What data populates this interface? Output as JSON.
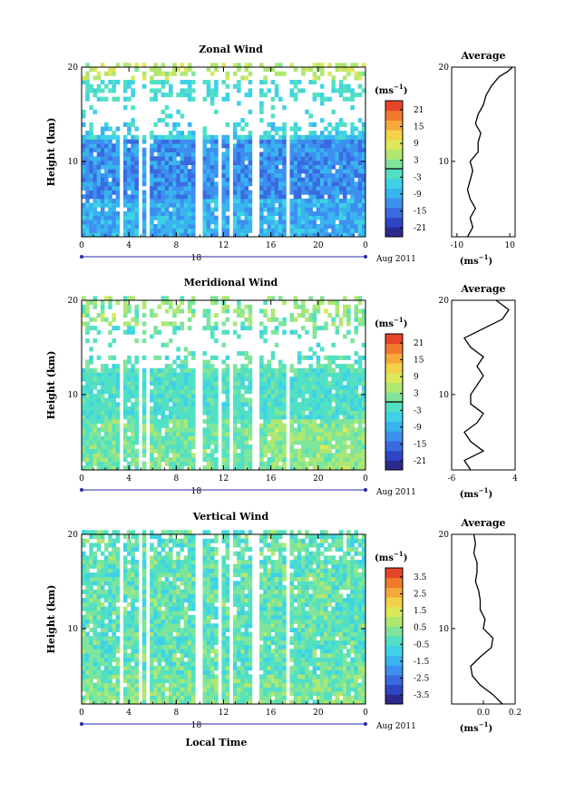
{
  "figure": {
    "xlabel": "Local Time",
    "date_label": "Aug 2011",
    "day_label": "18",
    "unit_label": "(ms",
    "unit_exp": "−1",
    "avg_title": "Average"
  },
  "palette": [
    "#2b2a8c",
    "#2e45c6",
    "#3a6ae0",
    "#3d8ff0",
    "#39b4ef",
    "#3fd2e6",
    "#52e0c4",
    "#7ee59a",
    "#aee872",
    "#dce85a",
    "#f3d24a",
    "#f7a83a",
    "#f07a2c",
    "#e6452a"
  ],
  "chart_data": [
    {
      "type": "heatmap",
      "title": "Zonal Wind",
      "ylabel": "Height (km)",
      "xlim": [
        0,
        24
      ],
      "ylim": [
        2,
        20
      ],
      "xticks": [
        "0",
        "4",
        "8",
        "12",
        "16",
        "20",
        "0"
      ],
      "yticks": [
        "10",
        "20"
      ],
      "colorbar": {
        "min": -24,
        "max": 24,
        "ticks": [
          "21",
          "15",
          "9",
          "3",
          "-3",
          "-9",
          "-15",
          "-21"
        ],
        "zero_line": 0
      },
      "data_gaps_hours": [
        [
          3.2,
          3.6
        ],
        [
          4.8,
          5.1
        ],
        [
          5.6,
          5.9
        ],
        [
          9.6,
          10.2
        ],
        [
          11.6,
          11.9
        ],
        [
          12.6,
          12.9
        ],
        [
          14.3,
          15.2
        ],
        [
          17.4,
          17.6
        ]
      ],
      "profile": {
        "title": "Average",
        "xlim": [
          -12,
          12
        ],
        "xticks": [
          "-10",
          "10"
        ],
        "xlabel": "(ms",
        "heights": [
          2,
          3,
          4,
          5,
          6,
          7,
          8,
          9,
          10,
          11,
          12,
          13,
          14,
          15,
          16,
          17,
          18,
          19,
          19.5,
          20
        ],
        "values": [
          -6,
          -4,
          -5,
          -3,
          -5,
          -6,
          -5,
          -4,
          -5,
          -2,
          -2,
          -1,
          -3,
          -2,
          0,
          1,
          3,
          6,
          9,
          11
        ]
      }
    },
    {
      "type": "heatmap",
      "title": "Meridional Wind",
      "ylabel": "Height (km)",
      "xlim": [
        0,
        24
      ],
      "ylim": [
        2,
        20
      ],
      "xticks": [
        "0",
        "4",
        "8",
        "12",
        "16",
        "20",
        "0"
      ],
      "yticks": [
        "10",
        "20"
      ],
      "colorbar": {
        "min": -24,
        "max": 24,
        "ticks": [
          "21",
          "15",
          "9",
          "3",
          "-3",
          "-9",
          "-15",
          "-21"
        ],
        "zero_line": 0
      },
      "data_gaps_hours": [
        [
          3.2,
          3.6
        ],
        [
          4.8,
          5.1
        ],
        [
          5.6,
          5.9
        ],
        [
          9.6,
          10.2
        ],
        [
          11.6,
          11.9
        ],
        [
          12.6,
          12.9
        ],
        [
          14.3,
          15.2
        ],
        [
          17.4,
          17.6
        ]
      ],
      "profile": {
        "title": "Average",
        "xlim": [
          -6,
          4
        ],
        "xticks": [
          "-6",
          "4"
        ],
        "xlabel": "(ms",
        "heights": [
          2,
          3,
          4,
          5,
          6,
          7,
          8,
          9,
          10,
          11,
          12,
          13,
          14,
          15,
          16,
          17,
          18,
          19,
          20
        ],
        "values": [
          -3,
          -4,
          -1,
          -3,
          -4,
          -2,
          -1,
          -3,
          -3,
          -2,
          -1,
          -2,
          -1,
          -3,
          -4,
          -1,
          2,
          3,
          1
        ]
      }
    },
    {
      "type": "heatmap",
      "title": "Vertical Wind",
      "ylabel": "Height (km)",
      "xlim": [
        0,
        24
      ],
      "ylim": [
        2,
        20
      ],
      "xticks": [
        "0",
        "4",
        "8",
        "12",
        "16",
        "20",
        "0"
      ],
      "yticks": [
        "10",
        "20"
      ],
      "colorbar": {
        "min": -4,
        "max": 4,
        "ticks": [
          "3.5",
          "2.5",
          "1.5",
          "0.5",
          "-0.5",
          "-1.5",
          "-2.5",
          "-3.5"
        ]
      },
      "data_gaps_hours": [
        [
          3.2,
          3.6
        ],
        [
          4.8,
          5.1
        ],
        [
          5.6,
          5.9
        ],
        [
          9.6,
          10.2
        ],
        [
          11.6,
          11.9
        ],
        [
          12.6,
          12.9
        ],
        [
          14.3,
          15.2
        ],
        [
          17.4,
          17.6
        ]
      ],
      "profile": {
        "title": "Average",
        "xlim": [
          -0.2,
          0.2
        ],
        "xticks": [
          "0.0",
          "0.2"
        ],
        "xlabel": "(ms",
        "heights": [
          2,
          3,
          4,
          5,
          6,
          7,
          8,
          9,
          10,
          11,
          12,
          13,
          14,
          15,
          16,
          17,
          18,
          19,
          20
        ],
        "values": [
          0.12,
          0.06,
          -0.02,
          -0.07,
          -0.08,
          -0.02,
          0.05,
          0.06,
          0.0,
          0.01,
          -0.02,
          -0.02,
          -0.03,
          -0.05,
          -0.04,
          -0.04,
          -0.06,
          -0.05,
          -0.06
        ]
      }
    }
  ]
}
